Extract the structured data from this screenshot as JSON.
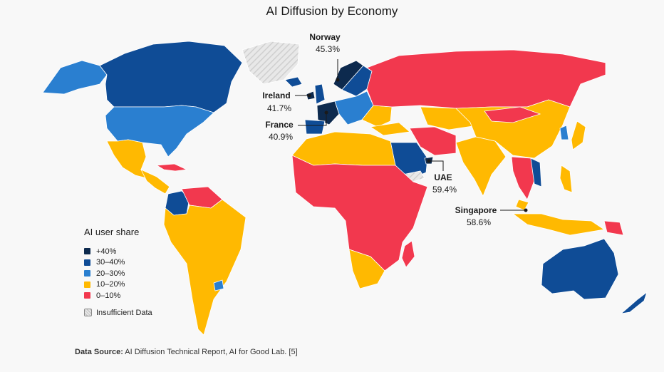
{
  "title": "AI Diffusion by Economy",
  "legend": {
    "title": "AI user share",
    "items": [
      {
        "label": "+40%",
        "color": "#0d2a4e"
      },
      {
        "label": "30–40%",
        "color": "#0f4c96"
      },
      {
        "label": "20–30%",
        "color": "#2a7fd0"
      },
      {
        "label": "10–20%",
        "color": "#ffb901"
      },
      {
        "label": "0–10%",
        "color": "#f2384e"
      }
    ],
    "no_data_label": "Insufficient Data"
  },
  "callouts": [
    {
      "country": "Norway",
      "value": "45.3%"
    },
    {
      "country": "Ireland",
      "value": "41.7%"
    },
    {
      "country": "France",
      "value": "40.9%"
    },
    {
      "country": "UAE",
      "value": "59.4%"
    },
    {
      "country": "Singapore",
      "value": "58.6%"
    }
  ],
  "source": {
    "label": "Data Source:",
    "text": " AI Diffusion Technical Report, AI for Good Lab. [5]"
  }
}
